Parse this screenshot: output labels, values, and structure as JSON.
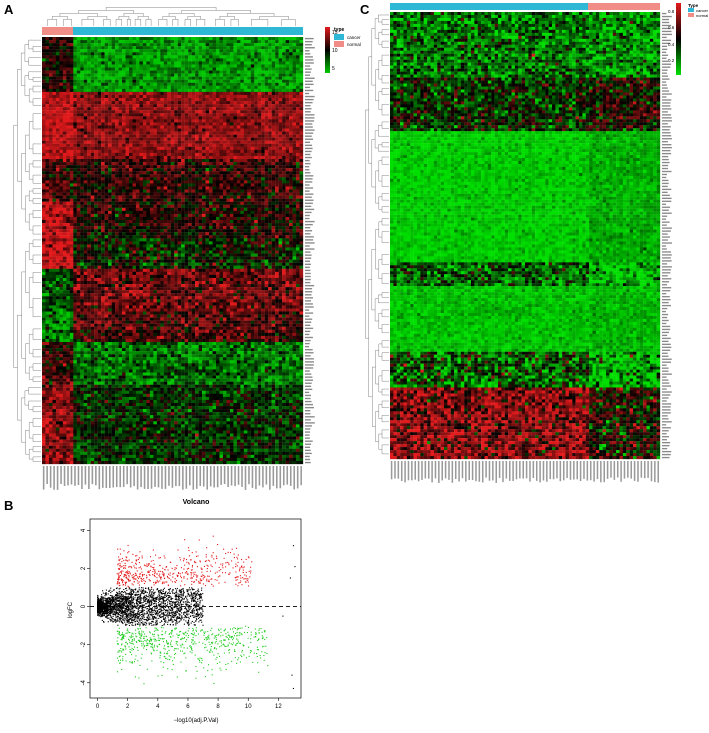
{
  "panels": {
    "A": {
      "label": "A",
      "legend": {
        "type_title": "type",
        "type_items": [
          "cancer",
          "normal"
        ],
        "type_colors": [
          "#2fb7d6",
          "#f08d86"
        ],
        "scale_ticks": [
          "15",
          "10",
          "5"
        ]
      },
      "colors": {
        "high": "#e31a1c",
        "mid": "#000000",
        "low": "#00c800"
      }
    },
    "C": {
      "label": "C",
      "legend": {
        "type_title": "Type",
        "type_items": [
          "cancer",
          "normal"
        ],
        "type_colors": [
          "#2fb7d6",
          "#f08d86"
        ],
        "scale_ticks": [
          "0.8",
          "0.6",
          "0.4",
          "0.2"
        ]
      },
      "colors": {
        "high": "#e31a1c",
        "mid": "#000000",
        "low": "#00e000"
      }
    },
    "B": {
      "label": "B"
    }
  },
  "chart_data": [
    {
      "panel": "A",
      "type": "heatmap",
      "annotation": "type",
      "groups": [
        "normal",
        "cancer"
      ],
      "colorbar_ticks": [
        15,
        10,
        5
      ]
    },
    {
      "panel": "C",
      "type": "heatmap",
      "annotation": "Type",
      "groups": [
        "cancer",
        "normal"
      ],
      "colorbar_ticks": [
        0.8,
        0.6,
        0.4,
        0.2
      ]
    },
    {
      "panel": "B",
      "type": "scatter",
      "title": "Volcano",
      "xlabel": "−log10(adj.P.Val)",
      "ylabel": "logFC",
      "xlim": [
        -0.5,
        13.5
      ],
      "ylim": [
        -4.8,
        4.6
      ],
      "xticks": [
        0,
        2,
        4,
        6,
        8,
        10,
        12
      ],
      "yticks": [
        -4,
        -2,
        0,
        2,
        4
      ],
      "threshold_line_y": 0,
      "series": [
        {
          "color": "#e31a1c"
        },
        {
          "color": "#000000"
        },
        {
          "color": "#22cc22"
        }
      ]
    }
  ]
}
